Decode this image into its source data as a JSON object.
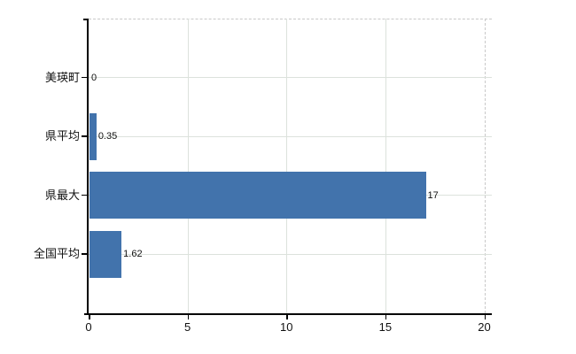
{
  "chart_data": {
    "type": "bar",
    "orientation": "horizontal",
    "title": "",
    "xlabel": "",
    "ylabel": "",
    "categories": [
      "美瑛町",
      "県平均",
      "県最大",
      "全国平均"
    ],
    "values": [
      0,
      0.35,
      17,
      1.62
    ],
    "value_labels": [
      "0",
      "0.35",
      "17",
      "1.62"
    ],
    "xlim": [
      0,
      20
    ],
    "x_ticks": [
      0,
      5,
      10,
      15,
      20
    ],
    "x_tick_labels": [
      "0",
      "5",
      "10",
      "15",
      "20"
    ],
    "legend_position": "none",
    "grid": "on",
    "colors": {
      "bar": "#4273ac",
      "axis": "#000000",
      "gridline": "#dce2dc",
      "plot_border_dashed": "#c9c9c9",
      "text": "#111111",
      "background": "#ffffff"
    }
  }
}
